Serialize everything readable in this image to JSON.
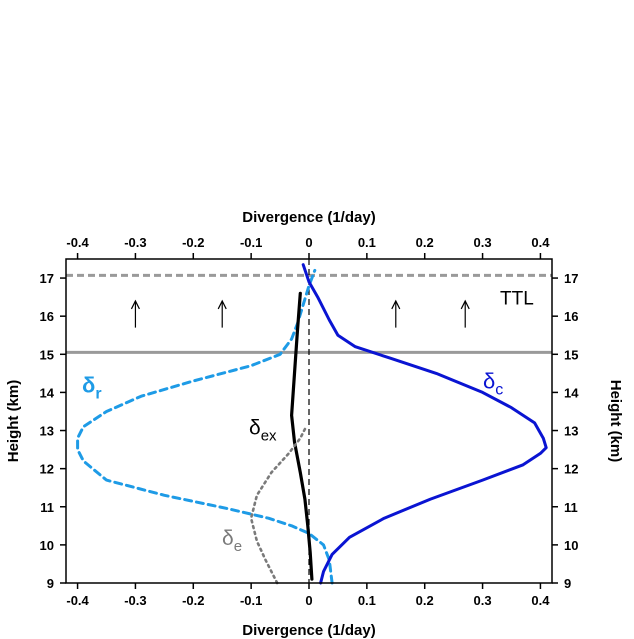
{
  "chart_data": {
    "type": "line",
    "title": "",
    "xlabel_bottom": "Divergence (1/day)",
    "xlabel_top": "Divergence (1/day)",
    "ylabel_left": "Height (km)",
    "ylabel_right": "Height (km)",
    "xlim": [
      -0.42,
      0.42
    ],
    "ylim": [
      9,
      17.5
    ],
    "xticks": [
      "-0.4",
      "-0.3",
      "-0.2",
      "-0.1",
      "0",
      "0.1",
      "0.2",
      "0.3",
      "0.4"
    ],
    "xtick_values": [
      -0.4,
      -0.3,
      -0.2,
      -0.1,
      0,
      0.1,
      0.2,
      0.3,
      0.4
    ],
    "yticks": [
      "9",
      "10",
      "11",
      "12",
      "13",
      "14",
      "15",
      "16",
      "17"
    ],
    "ytick_values": [
      9,
      10,
      11,
      12,
      13,
      14,
      15,
      16,
      17
    ],
    "grid": false,
    "colors": {
      "delta_r": "#1e9be6",
      "delta_c": "#0a14d2",
      "delta_ex": "#000000",
      "delta_e": "#7a7a7a",
      "reference_lines": "#9a9a9a"
    },
    "series": [
      {
        "key": "delta_r",
        "name": "δr",
        "label_main": "δ",
        "label_sub": "r",
        "x": [
          0.04,
          0.035,
          0.025,
          0.0,
          -0.03,
          -0.07,
          -0.14,
          -0.25,
          -0.35,
          -0.39,
          -0.4,
          -0.4,
          -0.39,
          -0.35,
          -0.29,
          -0.2,
          -0.1,
          -0.05,
          -0.03,
          -0.02,
          -0.01,
          0.0,
          0.01
        ],
        "y": [
          9.0,
          9.6,
          10.0,
          10.3,
          10.5,
          10.7,
          10.95,
          11.3,
          11.7,
          12.2,
          12.5,
          12.8,
          13.1,
          13.5,
          13.9,
          14.3,
          14.7,
          15.0,
          15.4,
          15.8,
          16.3,
          16.8,
          17.2
        ]
      },
      {
        "key": "delta_c",
        "name": "δc",
        "label_main": "δ",
        "label_sub": "c",
        "x": [
          0.02,
          0.025,
          0.04,
          0.07,
          0.13,
          0.21,
          0.3,
          0.37,
          0.4,
          0.41,
          0.405,
          0.39,
          0.35,
          0.3,
          0.22,
          0.14,
          0.08,
          0.05,
          0.035,
          0.015,
          0.0,
          -0.01
        ],
        "y": [
          9.0,
          9.3,
          9.75,
          10.2,
          10.7,
          11.2,
          11.7,
          12.1,
          12.4,
          12.55,
          12.8,
          13.2,
          13.6,
          14.0,
          14.5,
          14.9,
          15.2,
          15.5,
          15.9,
          16.5,
          16.9,
          17.35
        ]
      },
      {
        "key": "delta_ex",
        "name": "δex",
        "label_main": "δ",
        "label_sub": "ex",
        "x": [
          0.005,
          0.002,
          -0.002,
          -0.007,
          -0.015,
          -0.025,
          -0.03,
          -0.025,
          -0.02,
          -0.015
        ],
        "y": [
          9.1,
          9.8,
          10.5,
          11.2,
          11.9,
          12.7,
          13.4,
          14.5,
          15.6,
          16.6
        ]
      },
      {
        "key": "delta_e",
        "name": "δe",
        "label_main": "δ",
        "label_sub": "e",
        "x": [
          -0.055,
          -0.075,
          -0.09,
          -0.1,
          -0.09,
          -0.065,
          -0.035,
          -0.015,
          -0.005
        ],
        "y": [
          9.0,
          9.6,
          10.1,
          10.7,
          11.3,
          11.9,
          12.4,
          12.8,
          13.1
        ]
      }
    ],
    "reference_lines": {
      "solid_gray_height": 15.05,
      "dashed_gray_height": 17.07,
      "dashed_black_divergence": 0
    },
    "annotations": {
      "ttl": "TTL",
      "upward_arrows_divergence": [
        -0.3,
        -0.15,
        0.15,
        0.27
      ]
    }
  }
}
